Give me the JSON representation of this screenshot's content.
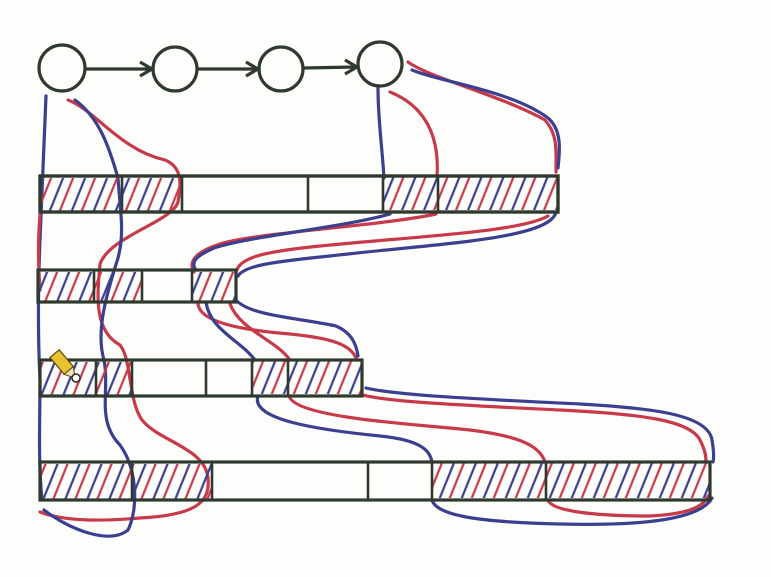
{
  "colors": {
    "background": "#fdfdfc",
    "ink": "#2f3a2e",
    "red": "#c8394a",
    "blue": "#3a3f8f",
    "pencil_body": "#e9c232",
    "pencil_tip": "#2b2b2b"
  },
  "nodes": [
    {
      "id": "n1"
    },
    {
      "id": "n2"
    },
    {
      "id": "n3"
    },
    {
      "id": "n4"
    }
  ],
  "arrows": [
    {
      "from": "n1",
      "to": "n2"
    },
    {
      "from": "n2",
      "to": "n3"
    },
    {
      "from": "n3",
      "to": "n4"
    }
  ],
  "arrays": [
    {
      "name": "row-1",
      "cells": [
        "hatched",
        "hatched",
        "empty",
        "empty",
        "hatched",
        "hatched"
      ]
    },
    {
      "name": "row-2",
      "cells": [
        "hatched",
        "hatched",
        "empty",
        "hatched"
      ]
    },
    {
      "name": "row-3",
      "cells": [
        "hatched",
        "hatched",
        "empty",
        "empty",
        "hatched",
        "hatched"
      ]
    },
    {
      "name": "row-4",
      "cells": [
        "hatched",
        "hatched",
        "empty",
        "empty",
        "hatched",
        "hatched"
      ]
    }
  ],
  "cursor_icon": "pencil-icon"
}
